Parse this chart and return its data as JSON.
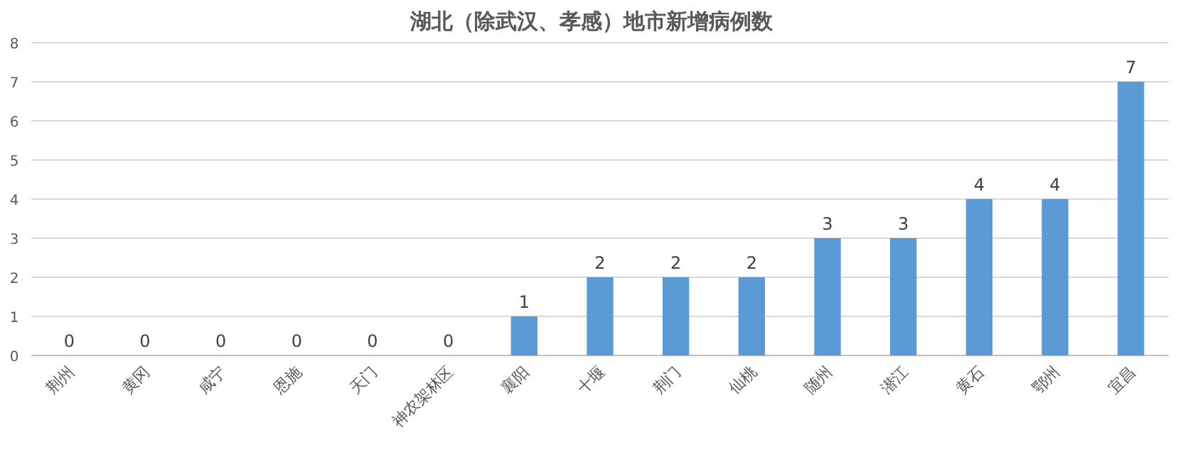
{
  "chart_data": {
    "type": "bar",
    "title": "湖北（除武汉、孝感）地市新增病例数",
    "categories": [
      "荆州",
      "黄冈",
      "咸宁",
      "恩施",
      "天门",
      "神农架林区",
      "襄阳",
      "十堰",
      "荆门",
      "仙桃",
      "随州",
      "潜江",
      "黄石",
      "鄂州",
      "宜昌"
    ],
    "values": [
      0,
      0,
      0,
      0,
      0,
      0,
      1,
      2,
      2,
      2,
      3,
      3,
      4,
      4,
      7
    ],
    "color": "#5b9bd5",
    "ylim": [
      0,
      8
    ],
    "yticks": [
      0,
      1,
      2,
      3,
      4,
      5,
      6,
      7,
      8
    ],
    "grid": "y",
    "data_labels": true
  }
}
